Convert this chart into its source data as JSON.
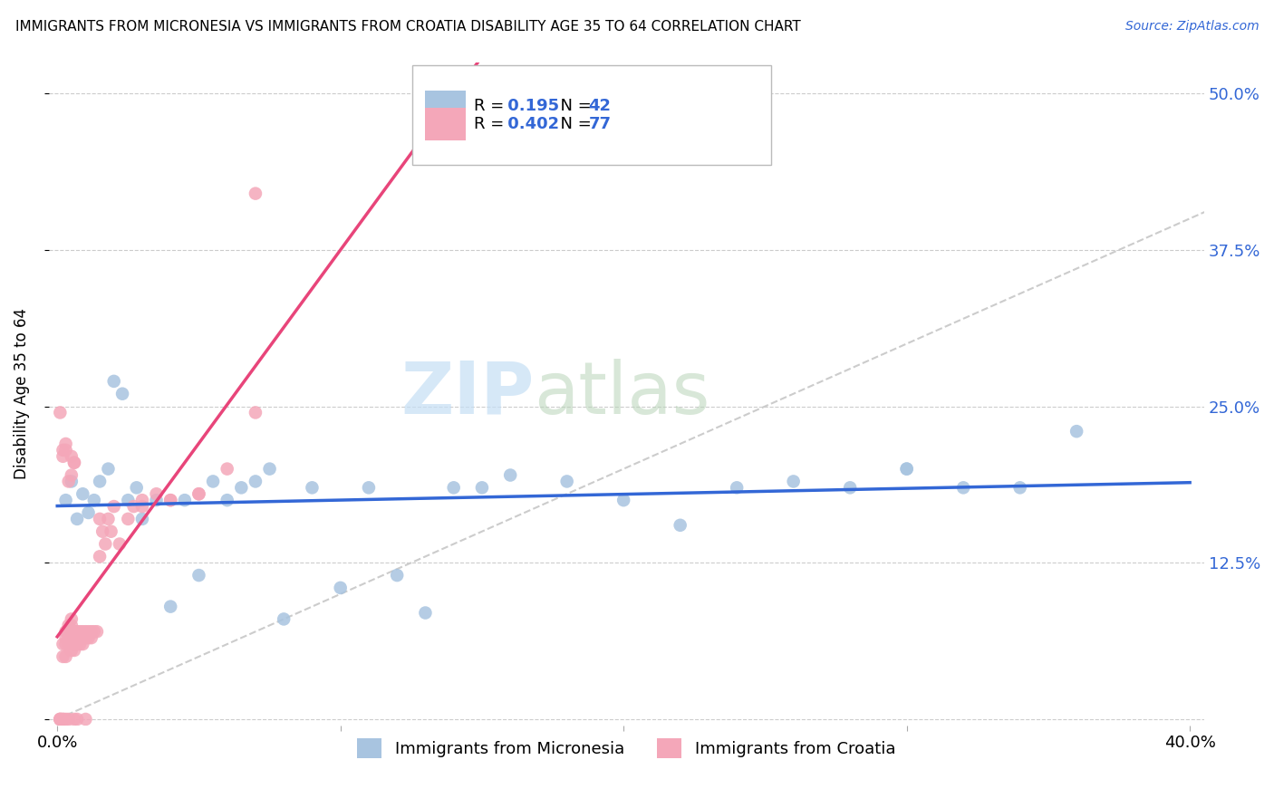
{
  "title": "IMMIGRANTS FROM MICRONESIA VS IMMIGRANTS FROM CROATIA DISABILITY AGE 35 TO 64 CORRELATION CHART",
  "source": "Source: ZipAtlas.com",
  "ylabel": "Disability Age 35 to 64",
  "xlabel_micronesia": "Immigrants from Micronesia",
  "xlabel_croatia": "Immigrants from Croatia",
  "xlim": [
    0.0,
    0.4
  ],
  "ylim": [
    0.0,
    0.52
  ],
  "yticks": [
    0.0,
    0.125,
    0.25,
    0.375,
    0.5
  ],
  "ytick_labels_right": [
    "",
    "12.5%",
    "25.0%",
    "37.5%",
    "50.0%"
  ],
  "xticks": [
    0.0,
    0.1,
    0.2,
    0.3,
    0.4
  ],
  "xtick_labels": [
    "0.0%",
    "",
    "",
    "",
    "40.0%"
  ],
  "R_micronesia": 0.195,
  "N_micronesia": 42,
  "R_croatia": 0.402,
  "N_croatia": 77,
  "color_micronesia": "#a8c4e0",
  "color_croatia": "#f4a7b9",
  "line_color_micronesia": "#3367d6",
  "line_color_croatia": "#e8457a",
  "diagonal_color": "#cccccc",
  "watermark_zip": "ZIP",
  "watermark_atlas": "atlas",
  "mic_x": [
    0.003,
    0.005,
    0.007,
    0.009,
    0.011,
    0.013,
    0.015,
    0.018,
    0.02,
    0.023,
    0.025,
    0.028,
    0.03,
    0.035,
    0.04,
    0.045,
    0.05,
    0.055,
    0.06,
    0.065,
    0.07,
    0.075,
    0.08,
    0.09,
    0.1,
    0.11,
    0.12,
    0.13,
    0.14,
    0.15,
    0.16,
    0.18,
    0.2,
    0.22,
    0.24,
    0.26,
    0.28,
    0.3,
    0.32,
    0.34,
    0.36,
    0.3
  ],
  "mic_y": [
    0.175,
    0.19,
    0.16,
    0.18,
    0.165,
    0.175,
    0.19,
    0.2,
    0.27,
    0.26,
    0.175,
    0.185,
    0.16,
    0.175,
    0.09,
    0.175,
    0.115,
    0.19,
    0.175,
    0.185,
    0.19,
    0.2,
    0.08,
    0.185,
    0.105,
    0.185,
    0.115,
    0.085,
    0.185,
    0.185,
    0.195,
    0.19,
    0.175,
    0.155,
    0.185,
    0.19,
    0.185,
    0.2,
    0.185,
    0.185,
    0.23,
    0.2
  ],
  "cro_x": [
    0.001,
    0.001,
    0.001,
    0.002,
    0.002,
    0.002,
    0.002,
    0.003,
    0.003,
    0.003,
    0.003,
    0.003,
    0.004,
    0.004,
    0.004,
    0.004,
    0.005,
    0.005,
    0.005,
    0.005,
    0.005,
    0.005,
    0.006,
    0.006,
    0.006,
    0.006,
    0.006,
    0.007,
    0.007,
    0.007,
    0.007,
    0.008,
    0.008,
    0.008,
    0.009,
    0.009,
    0.009,
    0.01,
    0.01,
    0.01,
    0.011,
    0.011,
    0.012,
    0.012,
    0.013,
    0.014,
    0.015,
    0.015,
    0.016,
    0.017,
    0.018,
    0.019,
    0.02,
    0.022,
    0.025,
    0.027,
    0.03,
    0.035,
    0.04,
    0.05,
    0.06,
    0.07,
    0.03,
    0.04,
    0.05,
    0.002,
    0.003,
    0.004,
    0.005,
    0.006,
    0.001,
    0.002,
    0.003,
    0.004,
    0.005,
    0.006,
    0.07
  ],
  "cro_y": [
    0.0,
    0.0,
    0.0,
    0.0,
    0.0,
    0.05,
    0.06,
    0.0,
    0.05,
    0.06,
    0.07,
    0.065,
    0.06,
    0.065,
    0.07,
    0.075,
    0.06,
    0.065,
    0.07,
    0.055,
    0.075,
    0.08,
    0.055,
    0.06,
    0.065,
    0.07,
    0.0,
    0.06,
    0.065,
    0.07,
    0.0,
    0.06,
    0.065,
    0.07,
    0.06,
    0.065,
    0.07,
    0.065,
    0.07,
    0.0,
    0.065,
    0.07,
    0.065,
    0.07,
    0.07,
    0.07,
    0.13,
    0.16,
    0.15,
    0.14,
    0.16,
    0.15,
    0.17,
    0.14,
    0.16,
    0.17,
    0.17,
    0.18,
    0.175,
    0.18,
    0.2,
    0.245,
    0.175,
    0.175,
    0.18,
    0.215,
    0.22,
    0.19,
    0.195,
    0.205,
    0.245,
    0.21,
    0.215,
    0.0,
    0.21,
    0.205,
    0.42
  ]
}
